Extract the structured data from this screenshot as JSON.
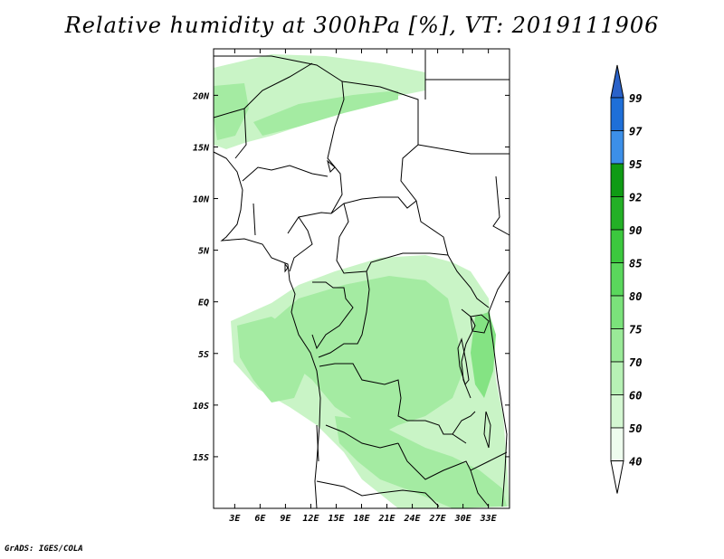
{
  "title": "Relative humidity at 300hPa [%], VT: 2019111906",
  "credit": "GrADS: IGES/COLA",
  "map": {
    "lat_ticks": [
      "20N",
      "15N",
      "10N",
      "5N",
      "EQ",
      "5S",
      "10S",
      "15S"
    ],
    "lat_values": [
      20,
      15,
      10,
      5,
      0,
      -5,
      -10,
      -15
    ],
    "lon_ticks": [
      "3E",
      "6E",
      "9E",
      "12E",
      "15E",
      "18E",
      "21E",
      "24E",
      "27E",
      "30E",
      "33E"
    ],
    "lon_values": [
      3,
      6,
      9,
      12,
      15,
      18,
      21,
      24,
      27,
      30,
      33
    ],
    "lon_range": [
      0.5,
      35.5
    ],
    "lat_range": [
      -20,
      24.5
    ]
  },
  "colorbar": {
    "levels": [
      "99",
      "97",
      "95",
      "92",
      "90",
      "85",
      "80",
      "75",
      "70",
      "60",
      "50",
      "40"
    ],
    "colors": [
      "#1e6fd8",
      "#1e6fd8",
      "#3c8fe8",
      "#0f9b14",
      "#23b026",
      "#3cc83e",
      "#5ad75c",
      "#7be27b",
      "#9aea98",
      "#b7f1b5",
      "#d4f7d2",
      "#eefcee"
    ]
  },
  "colors": {
    "field_light": "#cdf5cb",
    "field_mid": "#a7ec a4",
    "field_dark": "#84e383",
    "border": "#000000"
  }
}
